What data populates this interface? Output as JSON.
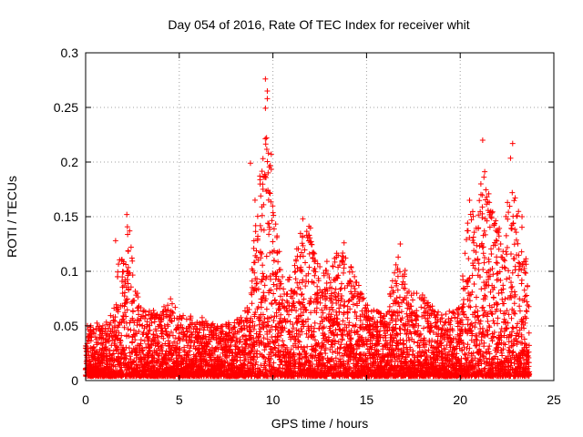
{
  "chart_data": {
    "type": "scatter",
    "title": "Day 054 of 2016, Rate Of TEC Index for receiver whit",
    "xlabel": "GPS time / hours",
    "ylabel": "ROTI / TECUs",
    "xlim": [
      0,
      25
    ],
    "ylim": [
      0,
      0.3
    ],
    "xticks": [
      0,
      5,
      10,
      15,
      20,
      25
    ],
    "xtick_labels": [
      "0",
      "5",
      "10",
      "15",
      "20",
      "25"
    ],
    "yticks": [
      0,
      0.05,
      0.1,
      0.15,
      0.2,
      0.25,
      0.3
    ],
    "ytick_labels": [
      "0",
      "0.05",
      "0.1",
      "0.15",
      "0.2",
      "0.25",
      "0.3"
    ],
    "grid": true,
    "marker": "+",
    "color": "#ff0000",
    "series": [
      {
        "name": "ROTI",
        "envelope": {
          "x": [
            0,
            0.5,
            1,
            1.6,
            1.8,
            2.0,
            2.3,
            2.6,
            3,
            4,
            4.5,
            5,
            6,
            7,
            8,
            8.8,
            9.1,
            9.4,
            9.65,
            9.85,
            10.1,
            10.5,
            11,
            11.5,
            11.9,
            12.2,
            12.5,
            13,
            13.5,
            13.9,
            14.3,
            15,
            16,
            16.8,
            17.3,
            18,
            19,
            20,
            20.5,
            20.9,
            21.2,
            21.5,
            21.9,
            22.3,
            22.7,
            23.0,
            23.3,
            23.7
          ],
          "y": [
            0.05,
            0.055,
            0.05,
            0.07,
            0.13,
            0.11,
            0.15,
            0.09,
            0.07,
            0.065,
            0.08,
            0.06,
            0.06,
            0.05,
            0.055,
            0.07,
            0.2,
            0.19,
            0.275,
            0.24,
            0.15,
            0.1,
            0.1,
            0.14,
            0.15,
            0.12,
            0.11,
            0.11,
            0.12,
            0.12,
            0.1,
            0.07,
            0.06,
            0.125,
            0.08,
            0.08,
            0.06,
            0.07,
            0.165,
            0.15,
            0.22,
            0.18,
            0.16,
            0.13,
            0.21,
            0.16,
            0.15,
            0.08
          ]
        },
        "sample_points": [
          {
            "x": 1.6,
            "y": 0.128
          },
          {
            "x": 2.2,
            "y": 0.152
          },
          {
            "x": 9.6,
            "y": 0.276
          },
          {
            "x": 9.7,
            "y": 0.265
          },
          {
            "x": 8.8,
            "y": 0.199
          },
          {
            "x": 11.6,
            "y": 0.148
          },
          {
            "x": 13.8,
            "y": 0.126
          },
          {
            "x": 16.8,
            "y": 0.125
          },
          {
            "x": 20.5,
            "y": 0.165
          },
          {
            "x": 21.2,
            "y": 0.22
          },
          {
            "x": 22.8,
            "y": 0.217
          },
          {
            "x": 23.3,
            "y": 0.15
          }
        ]
      }
    ]
  }
}
